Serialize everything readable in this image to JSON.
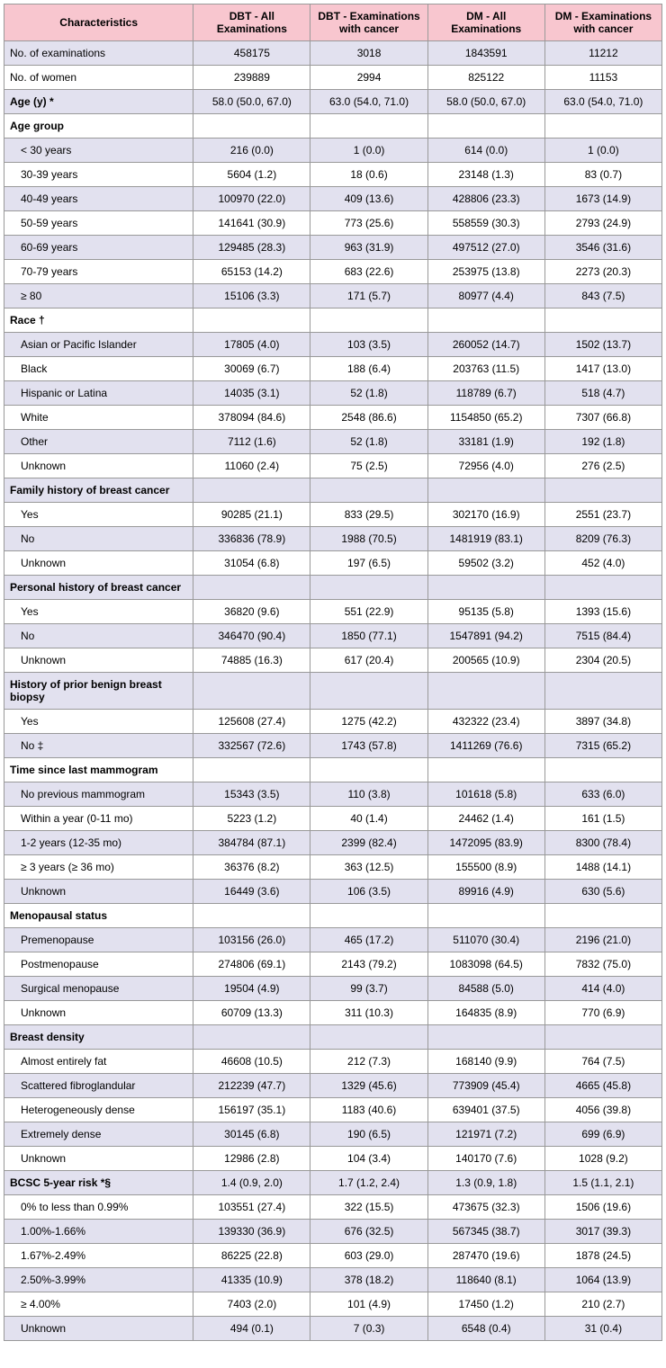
{
  "columns": [
    "Characteristics",
    "DBT - All Examinations",
    "DBT - Examinations with cancer",
    "DM - All Examinations",
    "DM - Examinations with cancer"
  ],
  "rows": [
    {
      "label": "No. of examinations",
      "indent": false,
      "bold": false,
      "c": [
        "458175",
        "3018",
        "1843591",
        "11212"
      ]
    },
    {
      "label": "No. of women",
      "indent": false,
      "bold": false,
      "c": [
        "239889",
        "2994",
        "825122",
        "11153"
      ]
    },
    {
      "label": "Age (y) *",
      "indent": false,
      "bold": true,
      "c": [
        "58.0 (50.0, 67.0)",
        "63.0 (54.0, 71.0)",
        "58.0 (50.0, 67.0)",
        "63.0 (54.0, 71.0)"
      ]
    },
    {
      "label": "Age group",
      "indent": false,
      "bold": true,
      "c": [
        "",
        "",
        "",
        ""
      ]
    },
    {
      "label": "< 30 years",
      "indent": true,
      "bold": false,
      "c": [
        "216 (0.0)",
        "1 (0.0)",
        "614 (0.0)",
        "1 (0.0)"
      ]
    },
    {
      "label": "30-39 years",
      "indent": true,
      "bold": false,
      "c": [
        "5604 (1.2)",
        "18 (0.6)",
        "23148 (1.3)",
        "83 (0.7)"
      ]
    },
    {
      "label": "40-49 years",
      "indent": true,
      "bold": false,
      "c": [
        "100970 (22.0)",
        "409 (13.6)",
        "428806 (23.3)",
        "1673 (14.9)"
      ]
    },
    {
      "label": "50-59 years",
      "indent": true,
      "bold": false,
      "c": [
        "141641 (30.9)",
        "773 (25.6)",
        "558559 (30.3)",
        "2793 (24.9)"
      ]
    },
    {
      "label": "60-69 years",
      "indent": true,
      "bold": false,
      "c": [
        "129485 (28.3)",
        "963 (31.9)",
        "497512 (27.0)",
        "3546 (31.6)"
      ]
    },
    {
      "label": "70-79 years",
      "indent": true,
      "bold": false,
      "c": [
        "65153 (14.2)",
        "683 (22.6)",
        "253975 (13.8)",
        "2273 (20.3)"
      ]
    },
    {
      "label": "≥ 80",
      "indent": true,
      "bold": false,
      "c": [
        "15106 (3.3)",
        "171 (5.7)",
        "80977 (4.4)",
        "843 (7.5)"
      ]
    },
    {
      "label": "Race †",
      "indent": false,
      "bold": true,
      "c": [
        "",
        "",
        "",
        ""
      ]
    },
    {
      "label": "Asian or Pacific Islander",
      "indent": true,
      "bold": false,
      "c": [
        "17805 (4.0)",
        "103 (3.5)",
        "260052 (14.7)",
        "1502 (13.7)"
      ]
    },
    {
      "label": "Black",
      "indent": true,
      "bold": false,
      "c": [
        "30069 (6.7)",
        "188 (6.4)",
        "203763 (11.5)",
        "1417 (13.0)"
      ]
    },
    {
      "label": "Hispanic or Latina",
      "indent": true,
      "bold": false,
      "c": [
        "14035 (3.1)",
        "52 (1.8)",
        "118789 (6.7)",
        "518 (4.7)"
      ]
    },
    {
      "label": "White",
      "indent": true,
      "bold": false,
      "c": [
        "378094 (84.6)",
        "2548 (86.6)",
        "1154850 (65.2)",
        "7307 (66.8)"
      ]
    },
    {
      "label": "Other",
      "indent": true,
      "bold": false,
      "c": [
        "7112 (1.6)",
        "52 (1.8)",
        "33181 (1.9)",
        "192 (1.8)"
      ]
    },
    {
      "label": "Unknown",
      "indent": true,
      "bold": false,
      "c": [
        "11060 (2.4)",
        "75 (2.5)",
        "72956 (4.0)",
        "276 (2.5)"
      ]
    },
    {
      "label": "Family history of breast cancer",
      "indent": false,
      "bold": true,
      "c": [
        "",
        "",
        "",
        ""
      ]
    },
    {
      "label": "Yes",
      "indent": true,
      "bold": false,
      "c": [
        "90285 (21.1)",
        "833 (29.5)",
        "302170 (16.9)",
        "2551 (23.7)"
      ]
    },
    {
      "label": "No",
      "indent": true,
      "bold": false,
      "c": [
        "336836 (78.9)",
        "1988 (70.5)",
        "1481919 (83.1)",
        "8209 (76.3)"
      ]
    },
    {
      "label": "Unknown",
      "indent": true,
      "bold": false,
      "c": [
        "31054 (6.8)",
        "197 (6.5)",
        "59502 (3.2)",
        "452 (4.0)"
      ]
    },
    {
      "label": "Personal history of breast cancer",
      "indent": false,
      "bold": true,
      "c": [
        "",
        "",
        "",
        ""
      ]
    },
    {
      "label": "Yes",
      "indent": true,
      "bold": false,
      "c": [
        "36820 (9.6)",
        "551 (22.9)",
        "95135 (5.8)",
        "1393 (15.6)"
      ]
    },
    {
      "label": "No",
      "indent": true,
      "bold": false,
      "c": [
        "346470 (90.4)",
        "1850 (77.1)",
        "1547891 (94.2)",
        "7515 (84.4)"
      ]
    },
    {
      "label": "Unknown",
      "indent": true,
      "bold": false,
      "c": [
        "74885 (16.3)",
        "617 (20.4)",
        "200565 (10.9)",
        "2304 (20.5)"
      ]
    },
    {
      "label": "History of prior benign breast biopsy",
      "indent": false,
      "bold": true,
      "c": [
        "",
        "",
        "",
        ""
      ]
    },
    {
      "label": "Yes",
      "indent": true,
      "bold": false,
      "c": [
        "125608 (27.4)",
        "1275 (42.2)",
        "432322 (23.4)",
        "3897 (34.8)"
      ]
    },
    {
      "label": "No ‡",
      "indent": true,
      "bold": false,
      "c": [
        "332567 (72.6)",
        "1743 (57.8)",
        "1411269 (76.6)",
        "7315 (65.2)"
      ]
    },
    {
      "label": "Time since last mammogram",
      "indent": false,
      "bold": true,
      "c": [
        "",
        "",
        "",
        ""
      ]
    },
    {
      "label": "No previous mammogram",
      "indent": true,
      "bold": false,
      "c": [
        "15343 (3.5)",
        "110 (3.8)",
        "101618 (5.8)",
        "633 (6.0)"
      ]
    },
    {
      "label": "Within a year (0-11 mo)",
      "indent": true,
      "bold": false,
      "c": [
        "5223 (1.2)",
        "40 (1.4)",
        "24462 (1.4)",
        "161 (1.5)"
      ]
    },
    {
      "label": "1-2 years (12-35 mo)",
      "indent": true,
      "bold": false,
      "c": [
        "384784 (87.1)",
        "2399 (82.4)",
        "1472095 (83.9)",
        "8300 (78.4)"
      ]
    },
    {
      "label": "≥ 3 years (≥ 36 mo)",
      "indent": true,
      "bold": false,
      "c": [
        "36376 (8.2)",
        "363 (12.5)",
        "155500 (8.9)",
        "1488 (14.1)"
      ]
    },
    {
      "label": "Unknown",
      "indent": true,
      "bold": false,
      "c": [
        "16449 (3.6)",
        "106 (3.5)",
        "89916 (4.9)",
        "630 (5.6)"
      ]
    },
    {
      "label": "Menopausal status",
      "indent": false,
      "bold": true,
      "c": [
        "",
        "",
        "",
        ""
      ]
    },
    {
      "label": "Premenopause",
      "indent": true,
      "bold": false,
      "c": [
        "103156 (26.0)",
        "465 (17.2)",
        "511070 (30.4)",
        "2196 (21.0)"
      ]
    },
    {
      "label": "Postmenopause",
      "indent": true,
      "bold": false,
      "c": [
        "274806 (69.1)",
        "2143 (79.2)",
        "1083098 (64.5)",
        "7832 (75.0)"
      ]
    },
    {
      "label": "Surgical menopause",
      "indent": true,
      "bold": false,
      "c": [
        "19504 (4.9)",
        "99 (3.7)",
        "84588 (5.0)",
        "414 (4.0)"
      ]
    },
    {
      "label": "Unknown",
      "indent": true,
      "bold": false,
      "c": [
        "60709 (13.3)",
        "311 (10.3)",
        "164835 (8.9)",
        "770 (6.9)"
      ]
    },
    {
      "label": "Breast density",
      "indent": false,
      "bold": true,
      "c": [
        "",
        "",
        "",
        ""
      ]
    },
    {
      "label": "Almost entirely fat",
      "indent": true,
      "bold": false,
      "c": [
        "46608 (10.5)",
        "212 (7.3)",
        "168140 (9.9)",
        "764 (7.5)"
      ]
    },
    {
      "label": "Scattered fibroglandular",
      "indent": true,
      "bold": false,
      "c": [
        "212239 (47.7)",
        "1329 (45.6)",
        "773909 (45.4)",
        "4665 (45.8)"
      ]
    },
    {
      "label": "Heterogeneously dense",
      "indent": true,
      "bold": false,
      "c": [
        "156197 (35.1)",
        "1183 (40.6)",
        "639401 (37.5)",
        "4056 (39.8)"
      ]
    },
    {
      "label": "Extremely dense",
      "indent": true,
      "bold": false,
      "c": [
        "30145 (6.8)",
        "190 (6.5)",
        "121971 (7.2)",
        "699 (6.9)"
      ]
    },
    {
      "label": "Unknown",
      "indent": true,
      "bold": false,
      "c": [
        "12986 (2.8)",
        "104 (3.4)",
        "140170 (7.6)",
        "1028 (9.2)"
      ]
    },
    {
      "label": "BCSC 5-year risk *§",
      "indent": false,
      "bold": true,
      "c": [
        "1.4 (0.9, 2.0)",
        "1.7 (1.2, 2.4)",
        "1.3 (0.9, 1.8)",
        "1.5 (1.1, 2.1)"
      ]
    },
    {
      "label": "0% to less than 0.99%",
      "indent": true,
      "bold": false,
      "c": [
        "103551 (27.4)",
        "322 (15.5)",
        "473675 (32.3)",
        "1506 (19.6)"
      ]
    },
    {
      "label": "1.00%-1.66%",
      "indent": true,
      "bold": false,
      "c": [
        "139330 (36.9)",
        "676 (32.5)",
        "567345 (38.7)",
        "3017 (39.3)"
      ]
    },
    {
      "label": "1.67%-2.49%",
      "indent": true,
      "bold": false,
      "c": [
        "86225 (22.8)",
        "603 (29.0)",
        "287470 (19.6)",
        "1878 (24.5)"
      ]
    },
    {
      "label": "2.50%-3.99%",
      "indent": true,
      "bold": false,
      "c": [
        "41335 (10.9)",
        "378 (18.2)",
        "118640 (8.1)",
        "1064 (13.9)"
      ]
    },
    {
      "label": "≥ 4.00%",
      "indent": true,
      "bold": false,
      "c": [
        "7403 (2.0)",
        "101 (4.9)",
        "17450 (1.2)",
        "210 (2.7)"
      ]
    },
    {
      "label": "Unknown",
      "indent": true,
      "bold": false,
      "c": [
        "494 (0.1)",
        "7 (0.3)",
        "6548 (0.4)",
        "31 (0.4)"
      ]
    }
  ]
}
